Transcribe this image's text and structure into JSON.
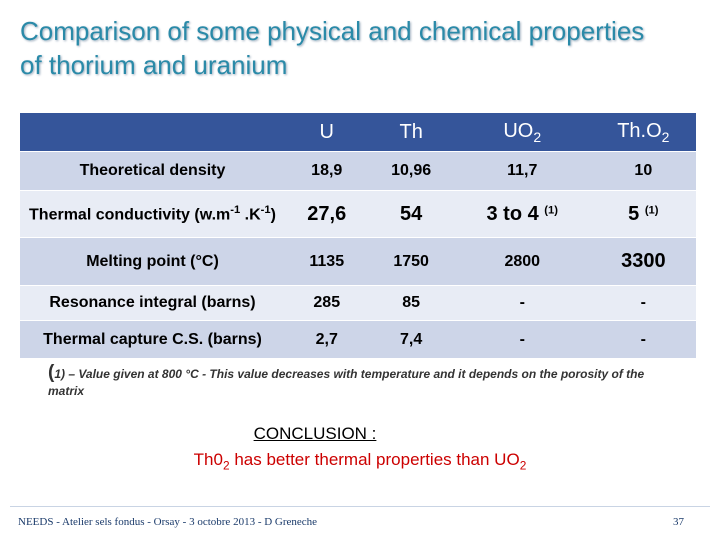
{
  "header": {
    "title": "Comparison of some physical and chemical properties of thorium and uranium"
  },
  "table": {
    "columns": [
      "U",
      "Th",
      [
        {
          "text": "UO"
        },
        {
          "text": "2",
          "pos": "sub"
        }
      ],
      [
        {
          "text": "Th.O"
        },
        {
          "text": "2",
          "pos": "sub"
        }
      ]
    ],
    "rows": [
      {
        "label": "Theoretical  density",
        "cells": [
          "18,9",
          "10,96",
          "11,7",
          "10"
        ]
      },
      {
        "label": [
          {
            "text": "Thermal conductivity "
          },
          {
            "text": "(w.m"
          },
          {
            "text": "-1",
            "pos": "sup"
          },
          {
            "text": " .K"
          },
          {
            "text": "-1",
            "pos": "sup"
          },
          {
            "text": ")"
          }
        ],
        "cells": [
          [
            {
              "text": "27,6",
              "size": "large"
            }
          ],
          [
            {
              "text": "54",
              "size": "large"
            }
          ],
          [
            {
              "text": "3 to 4 ",
              "size": "large"
            },
            {
              "text": "(1)",
              "pos": "sup"
            }
          ],
          [
            {
              "text": "5 ",
              "size": "large"
            },
            {
              "text": "(1)",
              "pos": "sup"
            }
          ]
        ]
      },
      {
        "label": "Melting point (°C)",
        "cells": [
          "1135",
          "1750",
          "2800",
          [
            {
              "text": "3300",
              "size": "large"
            }
          ]
        ]
      },
      {
        "label": "Resonance integral (barns)",
        "cells": [
          "285",
          "85",
          "-",
          "-"
        ]
      },
      {
        "label": "Thermal capture C.S. (barns)",
        "cells": [
          "2,7",
          "7,4",
          "-",
          "-"
        ]
      }
    ]
  },
  "footnote": [
    {
      "text": "(",
      "size": "large"
    },
    {
      "text": "1) – Value given at 800 °C  - This value decreases with temperature and it depends on the porosity of the matrix"
    }
  ],
  "conclusion": {
    "heading": "CONCLUSION :",
    "text": [
      {
        "text": "Th0"
      },
      {
        "text": "2",
        "pos": "sub"
      },
      {
        "text": " has better thermal properties than UO"
      },
      {
        "text": "2",
        "pos": "sub"
      }
    ]
  },
  "footer": {
    "text": "NEEDS - Atelier sels fondus - Orsay - 3 octobre 2013 - D Greneche",
    "page": "37"
  }
}
